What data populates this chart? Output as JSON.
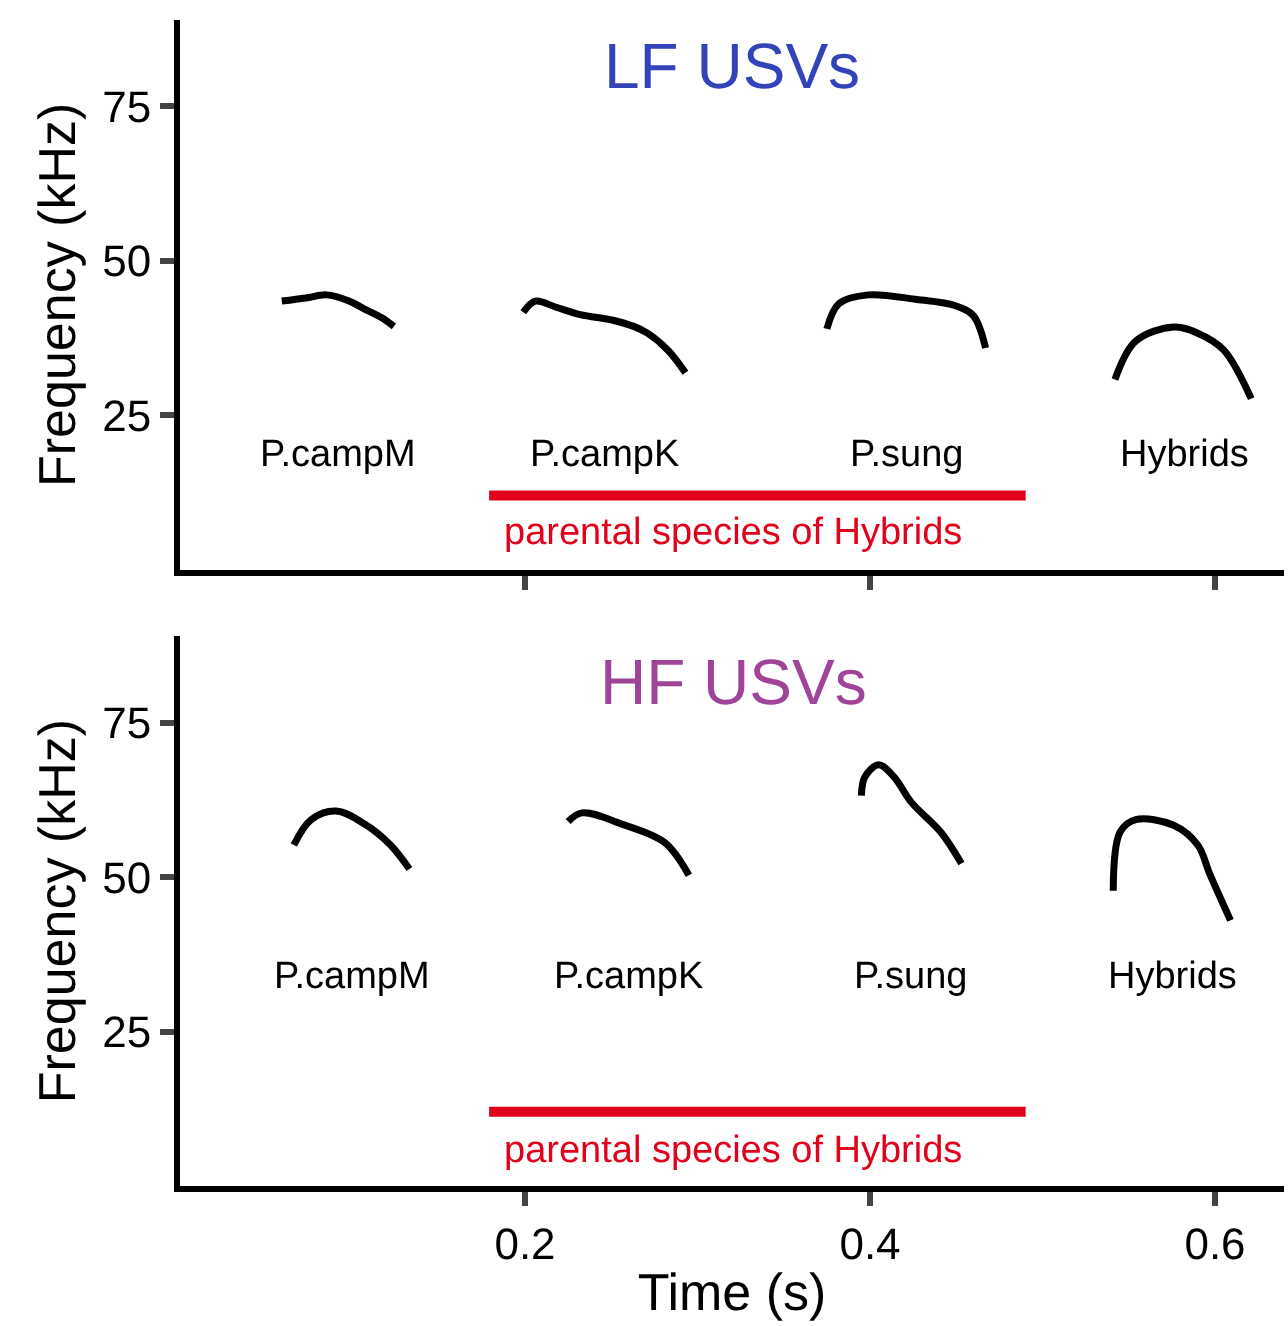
{
  "chart_data": [
    {
      "type": "line",
      "title": "LF USVs",
      "ylabel": "Frequency (kHz)",
      "xlim": [
        0,
        0.64
      ],
      "ylim": [
        0,
        89
      ],
      "xticks": [
        0.2,
        0.4,
        0.6
      ],
      "yticks": [
        25,
        50,
        75
      ],
      "tick_labels": "y",
      "legend": false,
      "series": [
        {
          "name": "P.campM",
          "color": "#000000",
          "x": [
            0.059,
            0.073,
            0.085,
            0.098,
            0.107,
            0.117,
            0.124
          ],
          "values": [
            43.5,
            44.0,
            44.5,
            43.5,
            42.2,
            40.8,
            39.4
          ]
        },
        {
          "name": "P.campK",
          "color": "#000000",
          "x": [
            0.199,
            0.206,
            0.218,
            0.232,
            0.251,
            0.263,
            0.271,
            0.283,
            0.293
          ],
          "values": [
            41.7,
            43.5,
            42.5,
            41.3,
            40.4,
            39.4,
            38.3,
            35.5,
            31.9
          ]
        },
        {
          "name": "P.sung",
          "color": "#000000",
          "x": [
            0.375,
            0.382,
            0.399,
            0.426,
            0.45,
            0.46,
            0.467
          ],
          "values": [
            39.0,
            43.1,
            44.5,
            43.8,
            42.7,
            41.1,
            35.9
          ]
        },
        {
          "name": "Hybrids",
          "color": "#000000",
          "x": [
            0.542,
            0.554,
            0.576,
            0.59,
            0.605,
            0.621
          ],
          "values": [
            30.8,
            37.0,
            39.3,
            38.3,
            35.6,
            27.7
          ]
        }
      ],
      "annotations": [
        "parental species of Hybrids"
      ]
    },
    {
      "type": "line",
      "title": "HF USVs",
      "xlabel": "Time (s)",
      "ylabel": "Frequency (kHz)",
      "xlim": [
        0,
        0.64
      ],
      "ylim": [
        0,
        89
      ],
      "xticks": [
        0.2,
        0.4,
        0.6
      ],
      "yticks": [
        25,
        50,
        75
      ],
      "legend": false,
      "series": [
        {
          "name": "P.campM",
          "color": "#000000",
          "x": [
            0.066,
            0.076,
            0.0905,
            0.107,
            0.122,
            0.133
          ],
          "values": [
            55.2,
            59.3,
            60.7,
            58.6,
            55.2,
            51.3
          ]
        },
        {
          "name": "P.campK",
          "color": "#000000",
          "x": [
            0.225,
            0.233,
            0.257,
            0.281,
            0.295
          ],
          "values": [
            59.0,
            60.4,
            58.5,
            55.6,
            50.3
          ]
        },
        {
          "name": "P.sung",
          "color": "#000000",
          "x": [
            0.395,
            0.397,
            0.405,
            0.414,
            0.424,
            0.441,
            0.453
          ],
          "values": [
            63.2,
            66.2,
            68.2,
            66.2,
            62.1,
            57.3,
            52.2
          ]
        },
        {
          "name": "Hybrids",
          "color": "#000000",
          "x": [
            0.541,
            0.545,
            0.554,
            0.576,
            0.59,
            0.597,
            0.609
          ],
          "values": [
            47.8,
            57.3,
            59.3,
            58.4,
            55.2,
            50.5,
            43.0
          ]
        }
      ],
      "annotations": [
        "parental species of Hybrids"
      ]
    }
  ]
}
